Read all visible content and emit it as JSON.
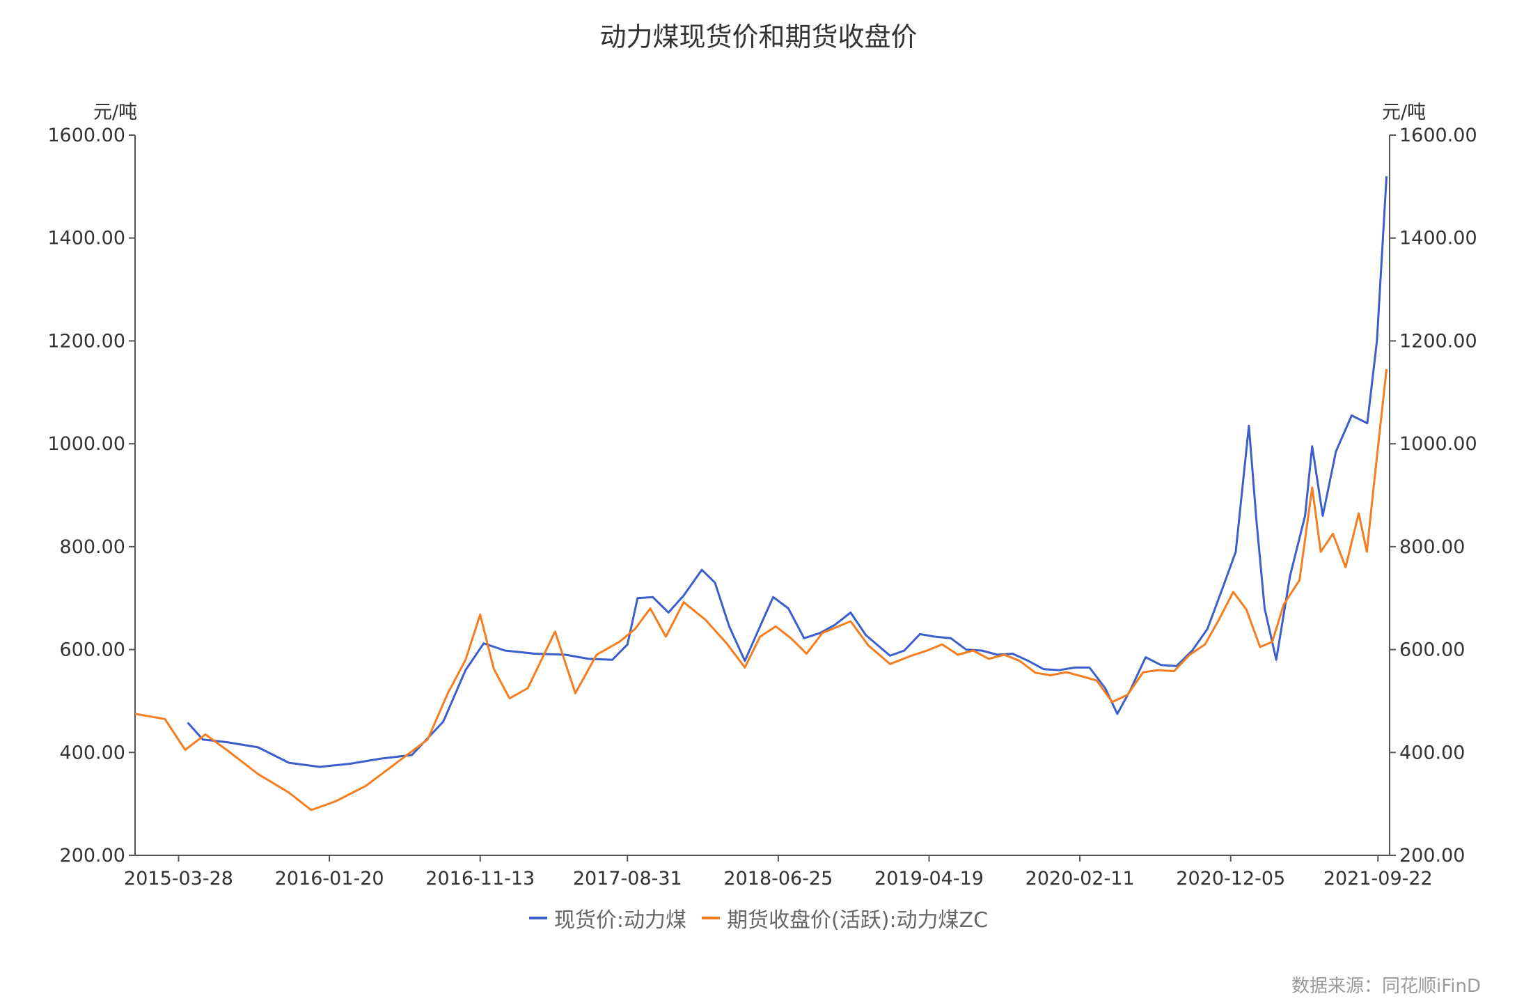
{
  "chart_data": {
    "type": "line",
    "title": "动力煤现货价和期货收盘价",
    "y_unit_left": "元/吨",
    "y_unit_right": "元/吨",
    "ylim": [
      200,
      1600
    ],
    "y_ticks": [
      "1600.00",
      "1400.00",
      "1200.00",
      "1000.00",
      "800.00",
      "600.00",
      "400.00",
      "200.00"
    ],
    "x_range": [
      "2015-01-01",
      "2021-10-15"
    ],
    "x_ticks": [
      "2015-03-28",
      "2016-01-20",
      "2016-11-13",
      "2017-08-31",
      "2018-06-25",
      "2019-04-19",
      "2020-02-11",
      "2020-12-05",
      "2021-09-22"
    ],
    "grid": false,
    "legend_position": "bottom",
    "series": [
      {
        "name": "现货价:动力煤",
        "color": "#3a5fcd",
        "points": [
          [
            "2015-04-15",
            458
          ],
          [
            "2015-05-15",
            425
          ],
          [
            "2015-07-01",
            420
          ],
          [
            "2015-09-01",
            410
          ],
          [
            "2015-11-01",
            380
          ],
          [
            "2016-01-01",
            372
          ],
          [
            "2016-03-01",
            378
          ],
          [
            "2016-05-01",
            388
          ],
          [
            "2016-07-01",
            395
          ],
          [
            "2016-09-01",
            460
          ],
          [
            "2016-10-15",
            560
          ],
          [
            "2016-11-20",
            612
          ],
          [
            "2017-01-01",
            598
          ],
          [
            "2017-03-01",
            592
          ],
          [
            "2017-05-01",
            590
          ],
          [
            "2017-06-15",
            582
          ],
          [
            "2017-08-01",
            580
          ],
          [
            "2017-08-31",
            610
          ],
          [
            "2017-09-20",
            700
          ],
          [
            "2017-10-20",
            702
          ],
          [
            "2017-11-20",
            672
          ],
          [
            "2017-12-20",
            705
          ],
          [
            "2018-01-25",
            755
          ],
          [
            "2018-02-20",
            730
          ],
          [
            "2018-03-20",
            645
          ],
          [
            "2018-04-20",
            578
          ],
          [
            "2018-05-20",
            645
          ],
          [
            "2018-06-15",
            702
          ],
          [
            "2018-07-15",
            680
          ],
          [
            "2018-08-15",
            622
          ],
          [
            "2018-09-15",
            632
          ],
          [
            "2018-10-15",
            648
          ],
          [
            "2018-11-15",
            672
          ],
          [
            "2018-12-15",
            628
          ],
          [
            "2019-02-01",
            588
          ],
          [
            "2019-03-01",
            598
          ],
          [
            "2019-04-01",
            630
          ],
          [
            "2019-05-01",
            625
          ],
          [
            "2019-06-01",
            622
          ],
          [
            "2019-07-01",
            600
          ],
          [
            "2019-08-01",
            598
          ],
          [
            "2019-09-01",
            590
          ],
          [
            "2019-10-01",
            592
          ],
          [
            "2019-11-01",
            578
          ],
          [
            "2019-12-01",
            562
          ],
          [
            "2020-01-01",
            560
          ],
          [
            "2020-02-01",
            565
          ],
          [
            "2020-03-01",
            565
          ],
          [
            "2020-04-01",
            525
          ],
          [
            "2020-04-25",
            475
          ],
          [
            "2020-05-20",
            520
          ],
          [
            "2020-06-20",
            585
          ],
          [
            "2020-07-20",
            570
          ],
          [
            "2020-08-20",
            568
          ],
          [
            "2020-09-20",
            598
          ],
          [
            "2020-10-20",
            640
          ],
          [
            "2020-11-20",
            722
          ],
          [
            "2020-12-15",
            790
          ],
          [
            "2021-01-10",
            1035
          ],
          [
            "2021-01-25",
            850
          ],
          [
            "2021-02-10",
            680
          ],
          [
            "2021-03-05",
            580
          ],
          [
            "2021-04-01",
            742
          ],
          [
            "2021-05-01",
            860
          ],
          [
            "2021-05-15",
            995
          ],
          [
            "2021-06-05",
            860
          ],
          [
            "2021-07-01",
            985
          ],
          [
            "2021-08-01",
            1055
          ],
          [
            "2021-09-01",
            1040
          ],
          [
            "2021-09-20",
            1200
          ],
          [
            "2021-10-09",
            1520
          ]
        ]
      },
      {
        "name": "期货收盘价(活跃):动力煤ZC",
        "color": "#f57c1f",
        "points": [
          [
            "2015-01-01",
            475
          ],
          [
            "2015-03-01",
            465
          ],
          [
            "2015-04-10",
            405
          ],
          [
            "2015-05-20",
            435
          ],
          [
            "2015-07-01",
            405
          ],
          [
            "2015-09-01",
            358
          ],
          [
            "2015-11-01",
            322
          ],
          [
            "2015-12-15",
            288
          ],
          [
            "2016-02-01",
            305
          ],
          [
            "2016-04-01",
            335
          ],
          [
            "2016-06-01",
            380
          ],
          [
            "2016-08-01",
            425
          ],
          [
            "2016-09-10",
            515
          ],
          [
            "2016-10-15",
            580
          ],
          [
            "2016-11-13",
            668
          ],
          [
            "2016-12-10",
            562
          ],
          [
            "2017-01-10",
            505
          ],
          [
            "2017-02-15",
            525
          ],
          [
            "2017-04-10",
            635
          ],
          [
            "2017-05-20",
            515
          ],
          [
            "2017-07-01",
            590
          ],
          [
            "2017-08-15",
            615
          ],
          [
            "2017-09-15",
            640
          ],
          [
            "2017-10-15",
            680
          ],
          [
            "2017-11-15",
            625
          ],
          [
            "2017-12-20",
            692
          ],
          [
            "2018-02-01",
            658
          ],
          [
            "2018-03-15",
            612
          ],
          [
            "2018-04-20",
            565
          ],
          [
            "2018-05-20",
            625
          ],
          [
            "2018-06-20",
            645
          ],
          [
            "2018-07-20",
            622
          ],
          [
            "2018-08-20",
            592
          ],
          [
            "2018-09-20",
            632
          ],
          [
            "2018-11-15",
            655
          ],
          [
            "2018-12-20",
            608
          ],
          [
            "2019-02-01",
            572
          ],
          [
            "2019-03-15",
            588
          ],
          [
            "2019-04-15",
            598
          ],
          [
            "2019-05-15",
            610
          ],
          [
            "2019-06-15",
            590
          ],
          [
            "2019-07-15",
            598
          ],
          [
            "2019-08-15",
            582
          ],
          [
            "2019-09-15",
            590
          ],
          [
            "2019-10-15",
            578
          ],
          [
            "2019-11-15",
            555
          ],
          [
            "2019-12-15",
            550
          ],
          [
            "2020-01-15",
            556
          ],
          [
            "2020-02-15",
            548
          ],
          [
            "2020-03-15",
            540
          ],
          [
            "2020-04-15",
            498
          ],
          [
            "2020-05-15",
            512
          ],
          [
            "2020-06-15",
            556
          ],
          [
            "2020-07-15",
            560
          ],
          [
            "2020-08-15",
            558
          ],
          [
            "2020-09-15",
            590
          ],
          [
            "2020-10-15",
            610
          ],
          [
            "2020-11-10",
            655
          ],
          [
            "2020-12-10",
            712
          ],
          [
            "2021-01-05",
            678
          ],
          [
            "2021-02-01",
            605
          ],
          [
            "2021-02-25",
            615
          ],
          [
            "2021-03-20",
            688
          ],
          [
            "2021-04-20",
            735
          ],
          [
            "2021-05-15",
            915
          ],
          [
            "2021-06-01",
            790
          ],
          [
            "2021-06-25",
            825
          ],
          [
            "2021-07-20",
            760
          ],
          [
            "2021-08-15",
            865
          ],
          [
            "2021-08-31",
            790
          ],
          [
            "2021-09-15",
            930
          ],
          [
            "2021-10-09",
            1145
          ]
        ]
      }
    ]
  },
  "source": "数据来源：同花顺iFinD"
}
